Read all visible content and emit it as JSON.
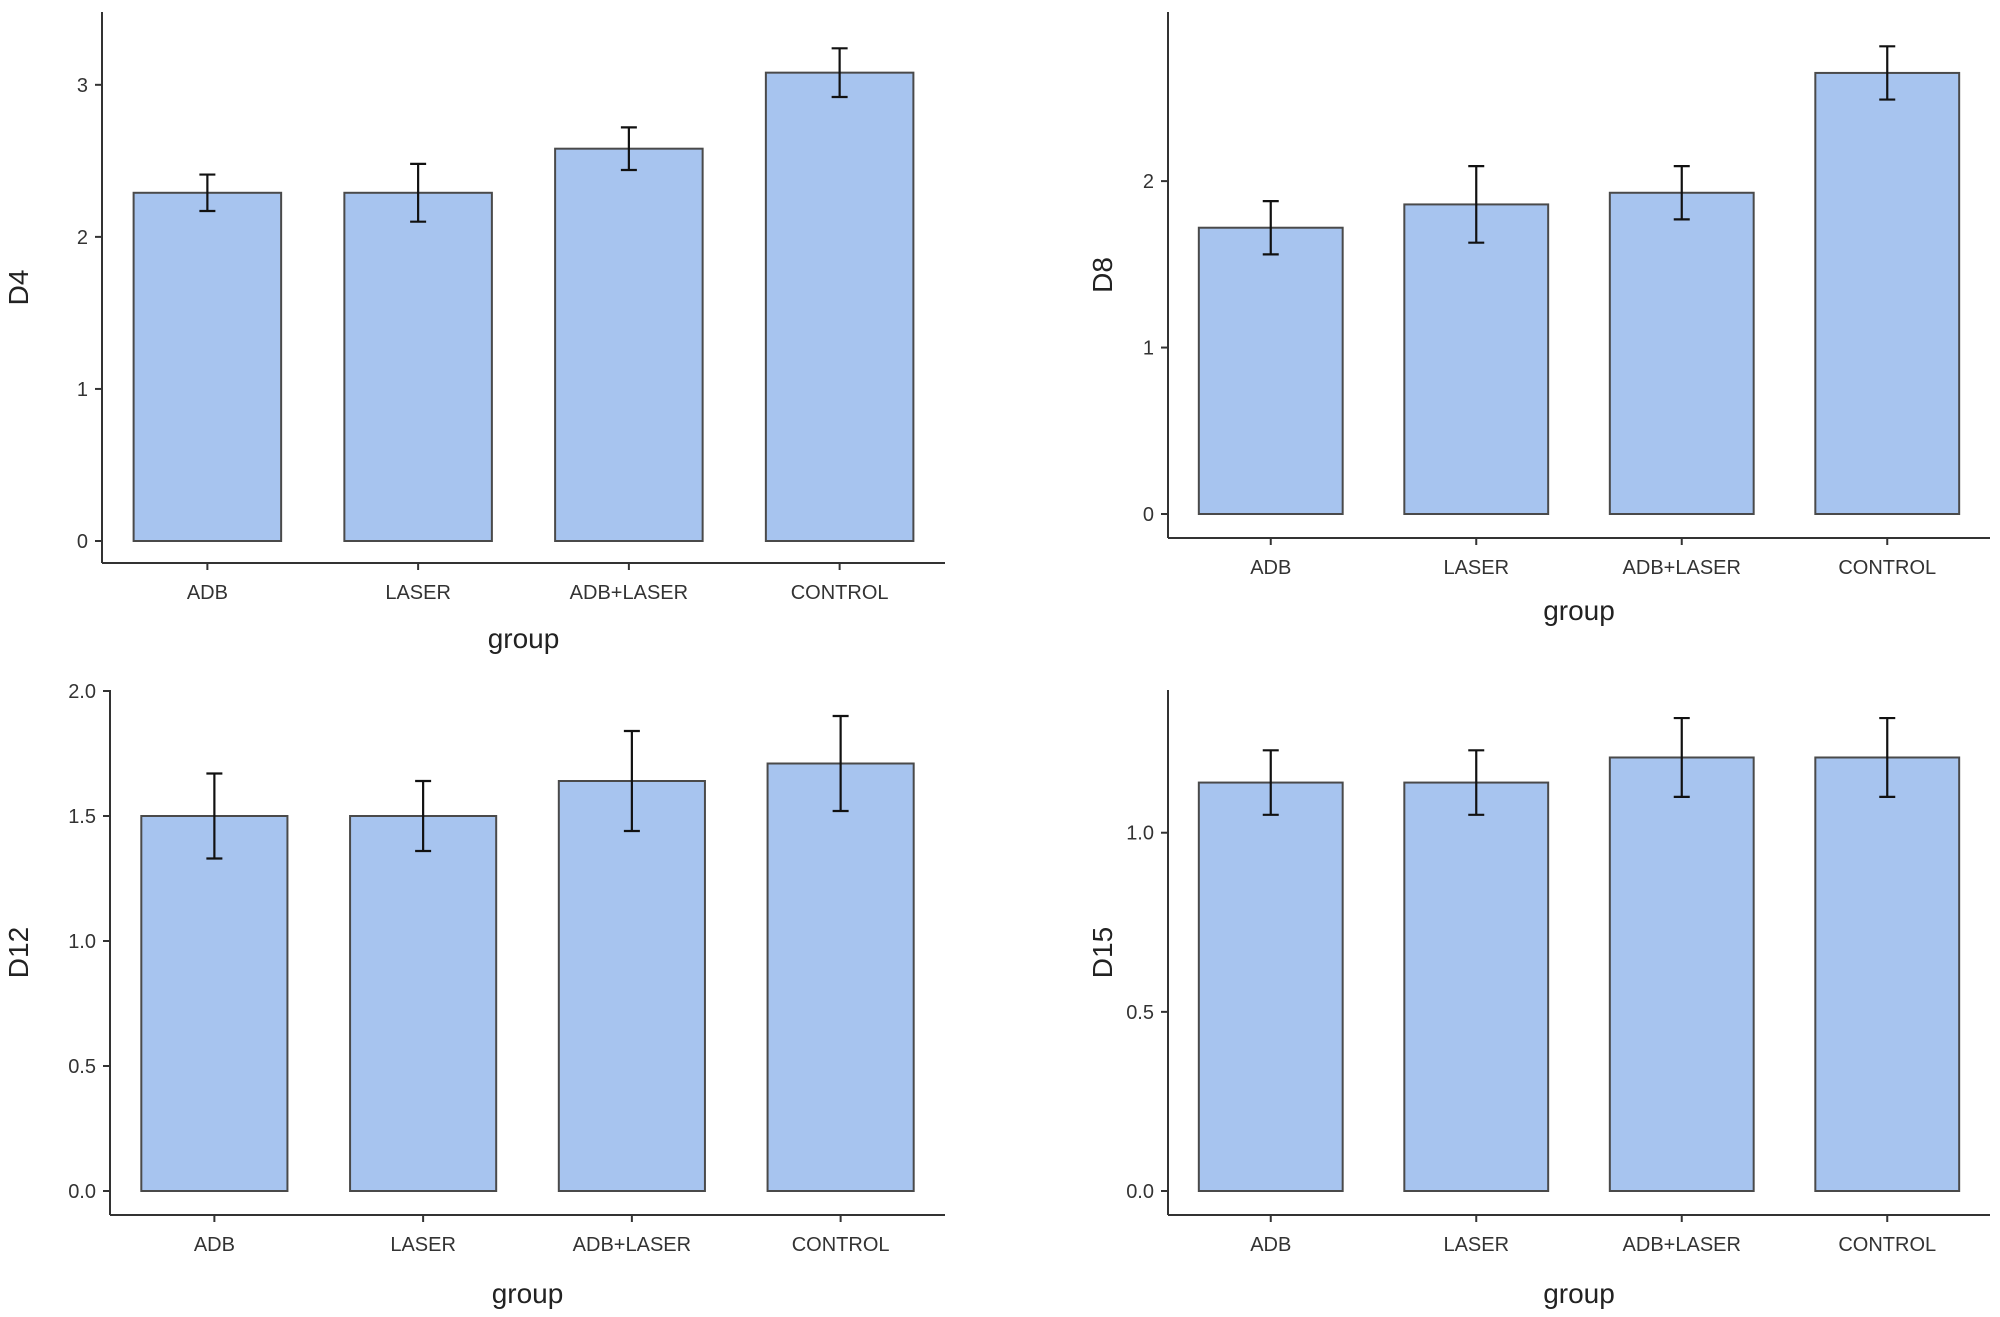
{
  "figure": {
    "background": "#ffffff",
    "bar_fill": "#a7c4ef",
    "bar_stroke": "#4a4a4a",
    "axis_color": "#333333"
  },
  "chart_data": [
    {
      "type": "bar",
      "categories": [
        "ADB",
        "LASER",
        "ADB+LASER",
        "CONTROL"
      ],
      "values": [
        2.29,
        2.29,
        2.58,
        3.08
      ],
      "error_low": [
        2.17,
        2.1,
        2.44,
        2.92
      ],
      "error_high": [
        2.41,
        2.48,
        2.72,
        3.24
      ],
      "xlabel": "group",
      "ylabel": "D4",
      "ylim": [
        0,
        3.4
      ],
      "yticks": [
        0,
        1,
        2,
        3
      ],
      "ytick_labels": [
        "0",
        "1",
        "2",
        "3"
      ],
      "grid": false
    },
    {
      "type": "bar",
      "categories": [
        "ADB",
        "LASER",
        "ADB+LASER",
        "CONTROL"
      ],
      "values": [
        1.72,
        1.86,
        1.93,
        2.65
      ],
      "error_low": [
        1.56,
        1.63,
        1.77,
        2.49
      ],
      "error_high": [
        1.88,
        2.09,
        2.09,
        2.81
      ],
      "xlabel": "group",
      "ylabel": "D8",
      "ylim": [
        0,
        2.95
      ],
      "yticks": [
        0,
        1,
        2
      ],
      "ytick_labels": [
        "0",
        "1",
        "2"
      ],
      "grid": false
    },
    {
      "type": "bar",
      "categories": [
        "ADB",
        "LASER",
        "ADB+LASER",
        "CONTROL"
      ],
      "values": [
        1.5,
        1.5,
        1.64,
        1.71
      ],
      "error_low": [
        1.33,
        1.36,
        1.44,
        1.52
      ],
      "error_high": [
        1.67,
        1.64,
        1.84,
        1.9
      ],
      "xlabel": "group",
      "ylabel": "D12",
      "ylim": [
        0,
        2.0
      ],
      "yticks": [
        0,
        0.5,
        1.0,
        1.5,
        2.0
      ],
      "ytick_labels": [
        "0.0",
        "0.5",
        "1.0",
        "1.5",
        "2.0"
      ],
      "grid": false
    },
    {
      "type": "bar",
      "categories": [
        "ADB",
        "LASER",
        "ADB+LASER",
        "CONTROL"
      ],
      "values": [
        1.14,
        1.14,
        1.21,
        1.21
      ],
      "error_low": [
        1.05,
        1.05,
        1.1,
        1.1
      ],
      "error_high": [
        1.23,
        1.23,
        1.32,
        1.32
      ],
      "xlabel": "group",
      "ylabel": "D15",
      "ylim": [
        0,
        1.39
      ],
      "yticks": [
        0,
        0.5,
        1.0
      ],
      "ytick_labels": [
        "0.0",
        "0.5",
        "1.0"
      ],
      "grid": false
    }
  ]
}
